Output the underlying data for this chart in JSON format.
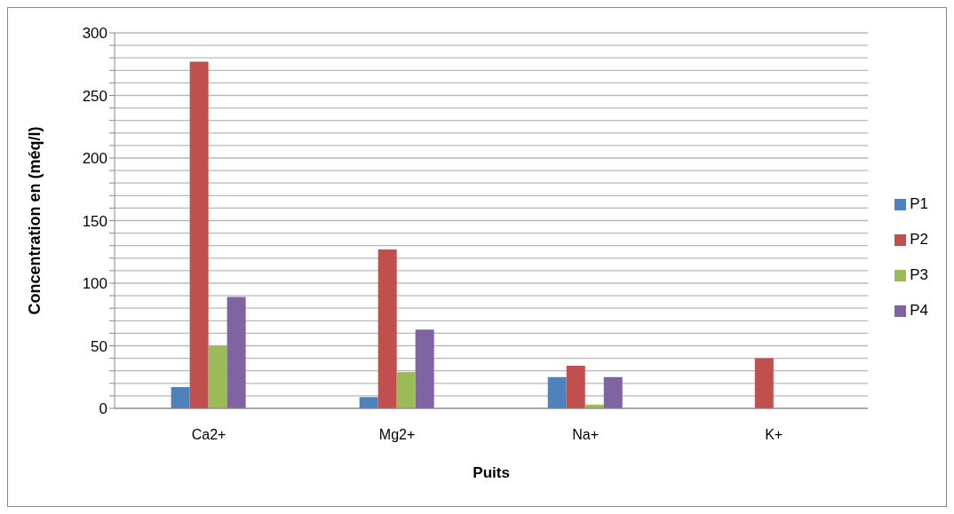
{
  "chart_data": {
    "type": "bar",
    "xlabel": "Puits",
    "ylabel": "Concentration en (méq/l)",
    "categories": [
      "Ca2+",
      "Mg2+",
      "Na+",
      "K+"
    ],
    "series": [
      {
        "name": "P1",
        "color": "#4f81bd",
        "values": [
          17,
          9,
          25,
          0
        ]
      },
      {
        "name": "P2",
        "color": "#c0504d",
        "values": [
          277,
          127,
          34,
          40
        ]
      },
      {
        "name": "P3",
        "color": "#9bbb59",
        "values": [
          50,
          29,
          3,
          0
        ]
      },
      {
        "name": "P4",
        "color": "#8064a2",
        "values": [
          89,
          63,
          25,
          0
        ]
      }
    ],
    "ylim": [
      0,
      300
    ],
    "yticks": [
      0,
      {
        "value": 10,
        "label": null
      },
      {
        "value": 20,
        "label": null
      },
      {
        "value": 30,
        "label": null
      },
      {
        "value": 40,
        "label": null
      },
      50,
      {
        "value": 60,
        "label": null
      },
      {
        "value": 70,
        "label": null
      },
      {
        "value": 80,
        "label": null
      },
      {
        "value": 90,
        "label": null
      },
      100,
      {
        "value": 110,
        "label": null
      },
      {
        "value": 120,
        "label": null
      },
      {
        "value": 130,
        "label": null
      },
      {
        "value": 140,
        "label": null
      },
      150,
      {
        "value": 160,
        "label": null
      },
      {
        "value": 170,
        "label": null
      },
      {
        "value": 180,
        "label": null
      },
      {
        "value": 190,
        "label": null
      },
      200,
      {
        "value": 210,
        "label": null
      },
      {
        "value": 220,
        "label": null
      },
      {
        "value": 230,
        "label": null
      },
      {
        "value": 240,
        "label": null
      },
      250,
      {
        "value": 260,
        "label": null
      },
      {
        "value": 270,
        "label": null
      },
      {
        "value": 280,
        "label": null
      },
      {
        "value": 290,
        "label": null
      },
      300
    ],
    "grid": "y",
    "legend": "right"
  }
}
